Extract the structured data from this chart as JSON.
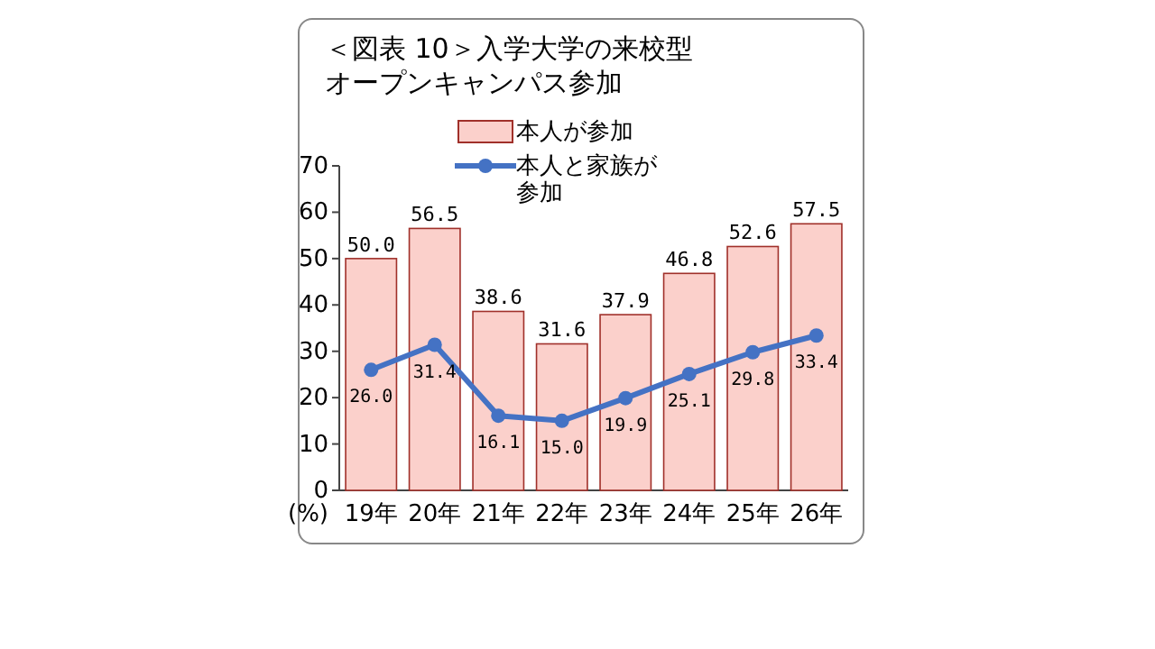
{
  "chart_data": {
    "type": "bar",
    "title": "＜図表 10＞入学大学の来校型オープンキャンパス参加",
    "ylabel": "(%)",
    "categories": [
      "19年",
      "20年",
      "21年",
      "22年",
      "23年",
      "24年",
      "25年",
      "26年"
    ],
    "series": [
      {
        "name": "本人が参加",
        "color": "#fbd0cb",
        "values": [
          50.0,
          56.5,
          38.6,
          31.6,
          37.9,
          46.8,
          52.6,
          57.5
        ],
        "value_labels": [
          "50.0",
          "56.5",
          "38.6",
          "31.6",
          "37.9",
          "46.8",
          "52.6",
          "57.5"
        ]
      },
      {
        "name": "本人と家族が参加",
        "type": "line",
        "color": "#4472c4",
        "marker": "circle",
        "values": [
          26.0,
          31.4,
          16.1,
          15.0,
          19.9,
          25.1,
          29.8,
          33.4
        ],
        "value_labels": [
          "26.0",
          "31.4",
          "16.1",
          "15.0",
          "19.9",
          "25.1",
          "29.8",
          "33.4"
        ]
      }
    ],
    "ylim": [
      0,
      70
    ],
    "yticks": [
      0,
      10,
      20,
      30,
      40,
      50,
      60,
      70
    ],
    "legend": "top",
    "grid": false
  }
}
